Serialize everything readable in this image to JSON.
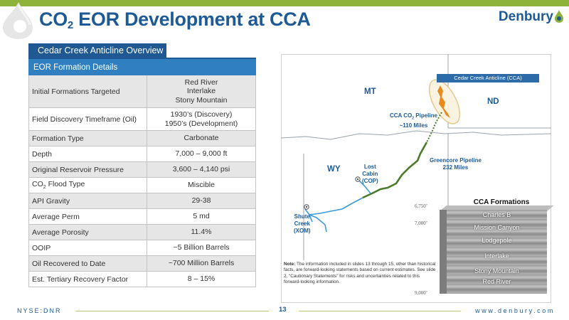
{
  "header": {
    "title_pre": "CO",
    "title_sub": "2",
    "title_post": " EOR Development at CCA",
    "brand": "Denbury"
  },
  "section_tab": "Cedar Creek Anticline Overview",
  "table": {
    "header": "EOR Formation Details",
    "rows": [
      {
        "label": "Initial Formations Targeted",
        "value_lines": [
          "Red River",
          "Interlake",
          "Stony Mountain"
        ]
      },
      {
        "label": "Field Discovery Timeframe (Oil)",
        "value_lines": [
          "1930’s (Discovery)",
          "1950’s (Development)"
        ]
      },
      {
        "label": "Formation Type",
        "value_lines": [
          "Carbonate"
        ]
      },
      {
        "label": "Depth",
        "value_lines": [
          "7,000 – 9,000 ft"
        ]
      },
      {
        "label": "Original Reservoir Pressure",
        "value_lines": [
          "3,600 – 4,140 psi"
        ]
      },
      {
        "label_pre": "CO",
        "label_sub": "2",
        "label_post": " Flood Type",
        "value_lines": [
          "Miscible"
        ]
      },
      {
        "label": "API Gravity",
        "value_lines": [
          "29-38"
        ]
      },
      {
        "label": "Average Perm",
        "value_lines": [
          "5 md"
        ]
      },
      {
        "label": "Average Porosity",
        "value_lines": [
          "11.4%"
        ]
      },
      {
        "label": "OOIP",
        "value_lines": [
          "~5 Billion Barrels"
        ]
      },
      {
        "label": "Oil Recovered to Date",
        "value_lines": [
          "~700 Million Barrels"
        ]
      },
      {
        "label": "Est. Tertiary Recovery Factor",
        "value_lines": [
          "8 – 15%"
        ]
      }
    ]
  },
  "map": {
    "states": {
      "mt": "MT",
      "nd": "ND",
      "wy": "WY"
    },
    "cca_label": "Cedar Creek Anticline (CCA)",
    "cca_pipeline": {
      "pre": "CCA CO",
      "sub": "2",
      "post": " Pipeline",
      "miles": "~110 Miles"
    },
    "greencore": {
      "name": "Greencore Pipeline",
      "miles": "232 Miles"
    },
    "lost_cabin": [
      "Lost",
      "Cabin",
      "(COP)"
    ],
    "shute_creek": [
      "Shute",
      "Creek",
      "(XOM)"
    ]
  },
  "note": {
    "label": "Note:",
    "text": " The information included in slides 13 through 15, other than historical facts, are forward-looking statements based on current estimates.  See slide 2, “Cautionary Statements” for risks and uncertainties related to this forward-looking information."
  },
  "formations": {
    "title": "CCA Formations",
    "layers": [
      "Charles B",
      "Mission Canyon",
      "Lodgepole",
      "Interlake",
      "Stony Mountain",
      "Red River"
    ],
    "depths": [
      "6,750’",
      "7,000’",
      "9,000’"
    ]
  },
  "footer": {
    "ticker": "NYSE:DNR",
    "page": "13",
    "url": "www.denbury.com"
  },
  "colors": {
    "brand_blue": "#1d5a96",
    "accent_green": "#8db33a",
    "table_header": "#2f7fc1",
    "tab": "#1f5893",
    "pipeline_green": "#4a7a2a",
    "pipeline_blue": "#3a9ad9",
    "cca_orange": "#e88a1c"
  }
}
